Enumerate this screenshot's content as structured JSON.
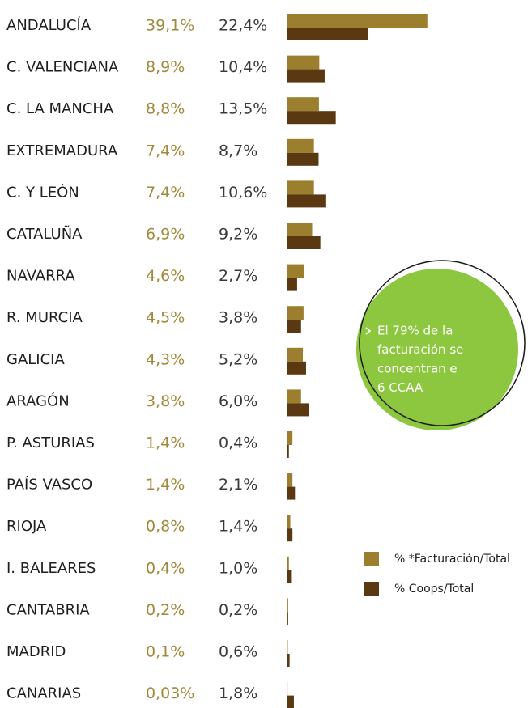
{
  "chart_data": {
    "type": "bar",
    "orientation": "horizontal",
    "categories": [
      "ANDALUCÍA",
      "C. VALENCIANA",
      "C. LA MANCHA",
      "EXTREMADURA",
      "C. Y LEÓN",
      "CATALUÑA",
      "NAVARRA",
      "R. MURCIA",
      "GALICIA",
      "ARAGÓN",
      "P. ASTURIAS",
      "PAÍS VASCO",
      "RIOJA",
      "I. BALEARES",
      "CANTABRIA",
      "MADRID",
      "CANARIAS"
    ],
    "series": [
      {
        "name": "% *Facturación/Total",
        "color": "#9c7f2e",
        "values": [
          39.1,
          8.9,
          8.8,
          7.4,
          7.4,
          6.9,
          4.6,
          4.5,
          4.3,
          3.8,
          1.4,
          1.4,
          0.8,
          0.4,
          0.2,
          0.1,
          0.03
        ],
        "value_labels": [
          "39,1%",
          "8,9%",
          "8,8%",
          "7,4%",
          "7,4%",
          "6,9%",
          "4,6%",
          "4,5%",
          "4,3%",
          "3,8%",
          "1,4%",
          "1,4%",
          "0,8%",
          "0,4%",
          "0,2%",
          "0,1%",
          "0,03%"
        ]
      },
      {
        "name": "% Coops/Total",
        "color": "#5a3912",
        "values": [
          22.4,
          10.4,
          13.5,
          8.7,
          10.6,
          9.2,
          2.7,
          3.8,
          5.2,
          6.0,
          0.4,
          2.1,
          1.4,
          1.0,
          0.2,
          0.6,
          1.8
        ],
        "value_labels": [
          "22,4%",
          "10,4%",
          "13,5%",
          "8,7%",
          "10,6%",
          "9,2%",
          "2,7%",
          "3,8%",
          "5,2%",
          "6,0%",
          "0,4%",
          "2,1%",
          "1,4%",
          "1,0%",
          "0,2%",
          "0,6%",
          "1,8%"
        ]
      }
    ],
    "annotation": [
      "El 79% de la",
      "facturación se",
      "concentran e",
      "6 CCAA"
    ]
  }
}
